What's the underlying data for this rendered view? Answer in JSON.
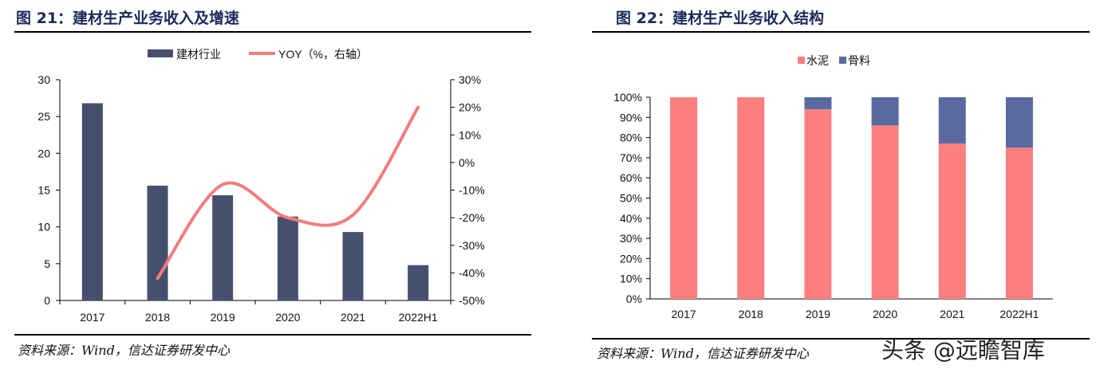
{
  "left": {
    "title": "图 21：建材生产业务收入及增速",
    "source": "资料来源：Wind，信达证券研发中心"
  },
  "right": {
    "title": "图 22：建材生产业务收入结构",
    "source": "资料来源：Wind，信达证券研发中心"
  },
  "watermark": "头条 @远瞻智库",
  "chart_data": [
    {
      "type": "bar+line",
      "categories": [
        "2017",
        "2018",
        "2019",
        "2020",
        "2021",
        "2022H1"
      ],
      "series": [
        {
          "name": "建材行业",
          "type": "bar",
          "axis": "left",
          "color": "#46506e",
          "values": [
            26.8,
            15.6,
            14.3,
            11.4,
            9.3,
            4.8
          ]
        },
        {
          "name": "YOY（%，右轴）",
          "type": "line",
          "axis": "right",
          "color": "#f47c7c",
          "values": [
            null,
            -42,
            -8,
            -20,
            -19,
            20
          ]
        }
      ],
      "ylim": [
        0,
        30
      ],
      "yticks": [
        "0",
        "5",
        "10",
        "15",
        "20",
        "25",
        "30"
      ],
      "y2lim": [
        -50,
        30
      ],
      "y2ticks": [
        "-50%",
        "-40%",
        "-30%",
        "-20%",
        "-10%",
        "0%",
        "10%",
        "20%",
        "30%"
      ],
      "legend": "top"
    },
    {
      "type": "stacked-bar",
      "categories": [
        "2017",
        "2018",
        "2019",
        "2020",
        "2021",
        "2022H1"
      ],
      "series": [
        {
          "name": "水泥",
          "color": "#fb7f7f",
          "values": [
            100,
            100,
            94,
            86,
            77,
            75
          ]
        },
        {
          "name": "骨料",
          "color": "#5a6aa0",
          "values": [
            0,
            0,
            6,
            14,
            23,
            25
          ]
        }
      ],
      "ylim": [
        0,
        100
      ],
      "yticks": [
        "0%",
        "10%",
        "20%",
        "30%",
        "40%",
        "50%",
        "60%",
        "70%",
        "80%",
        "90%",
        "100%"
      ],
      "legend": "top"
    }
  ]
}
